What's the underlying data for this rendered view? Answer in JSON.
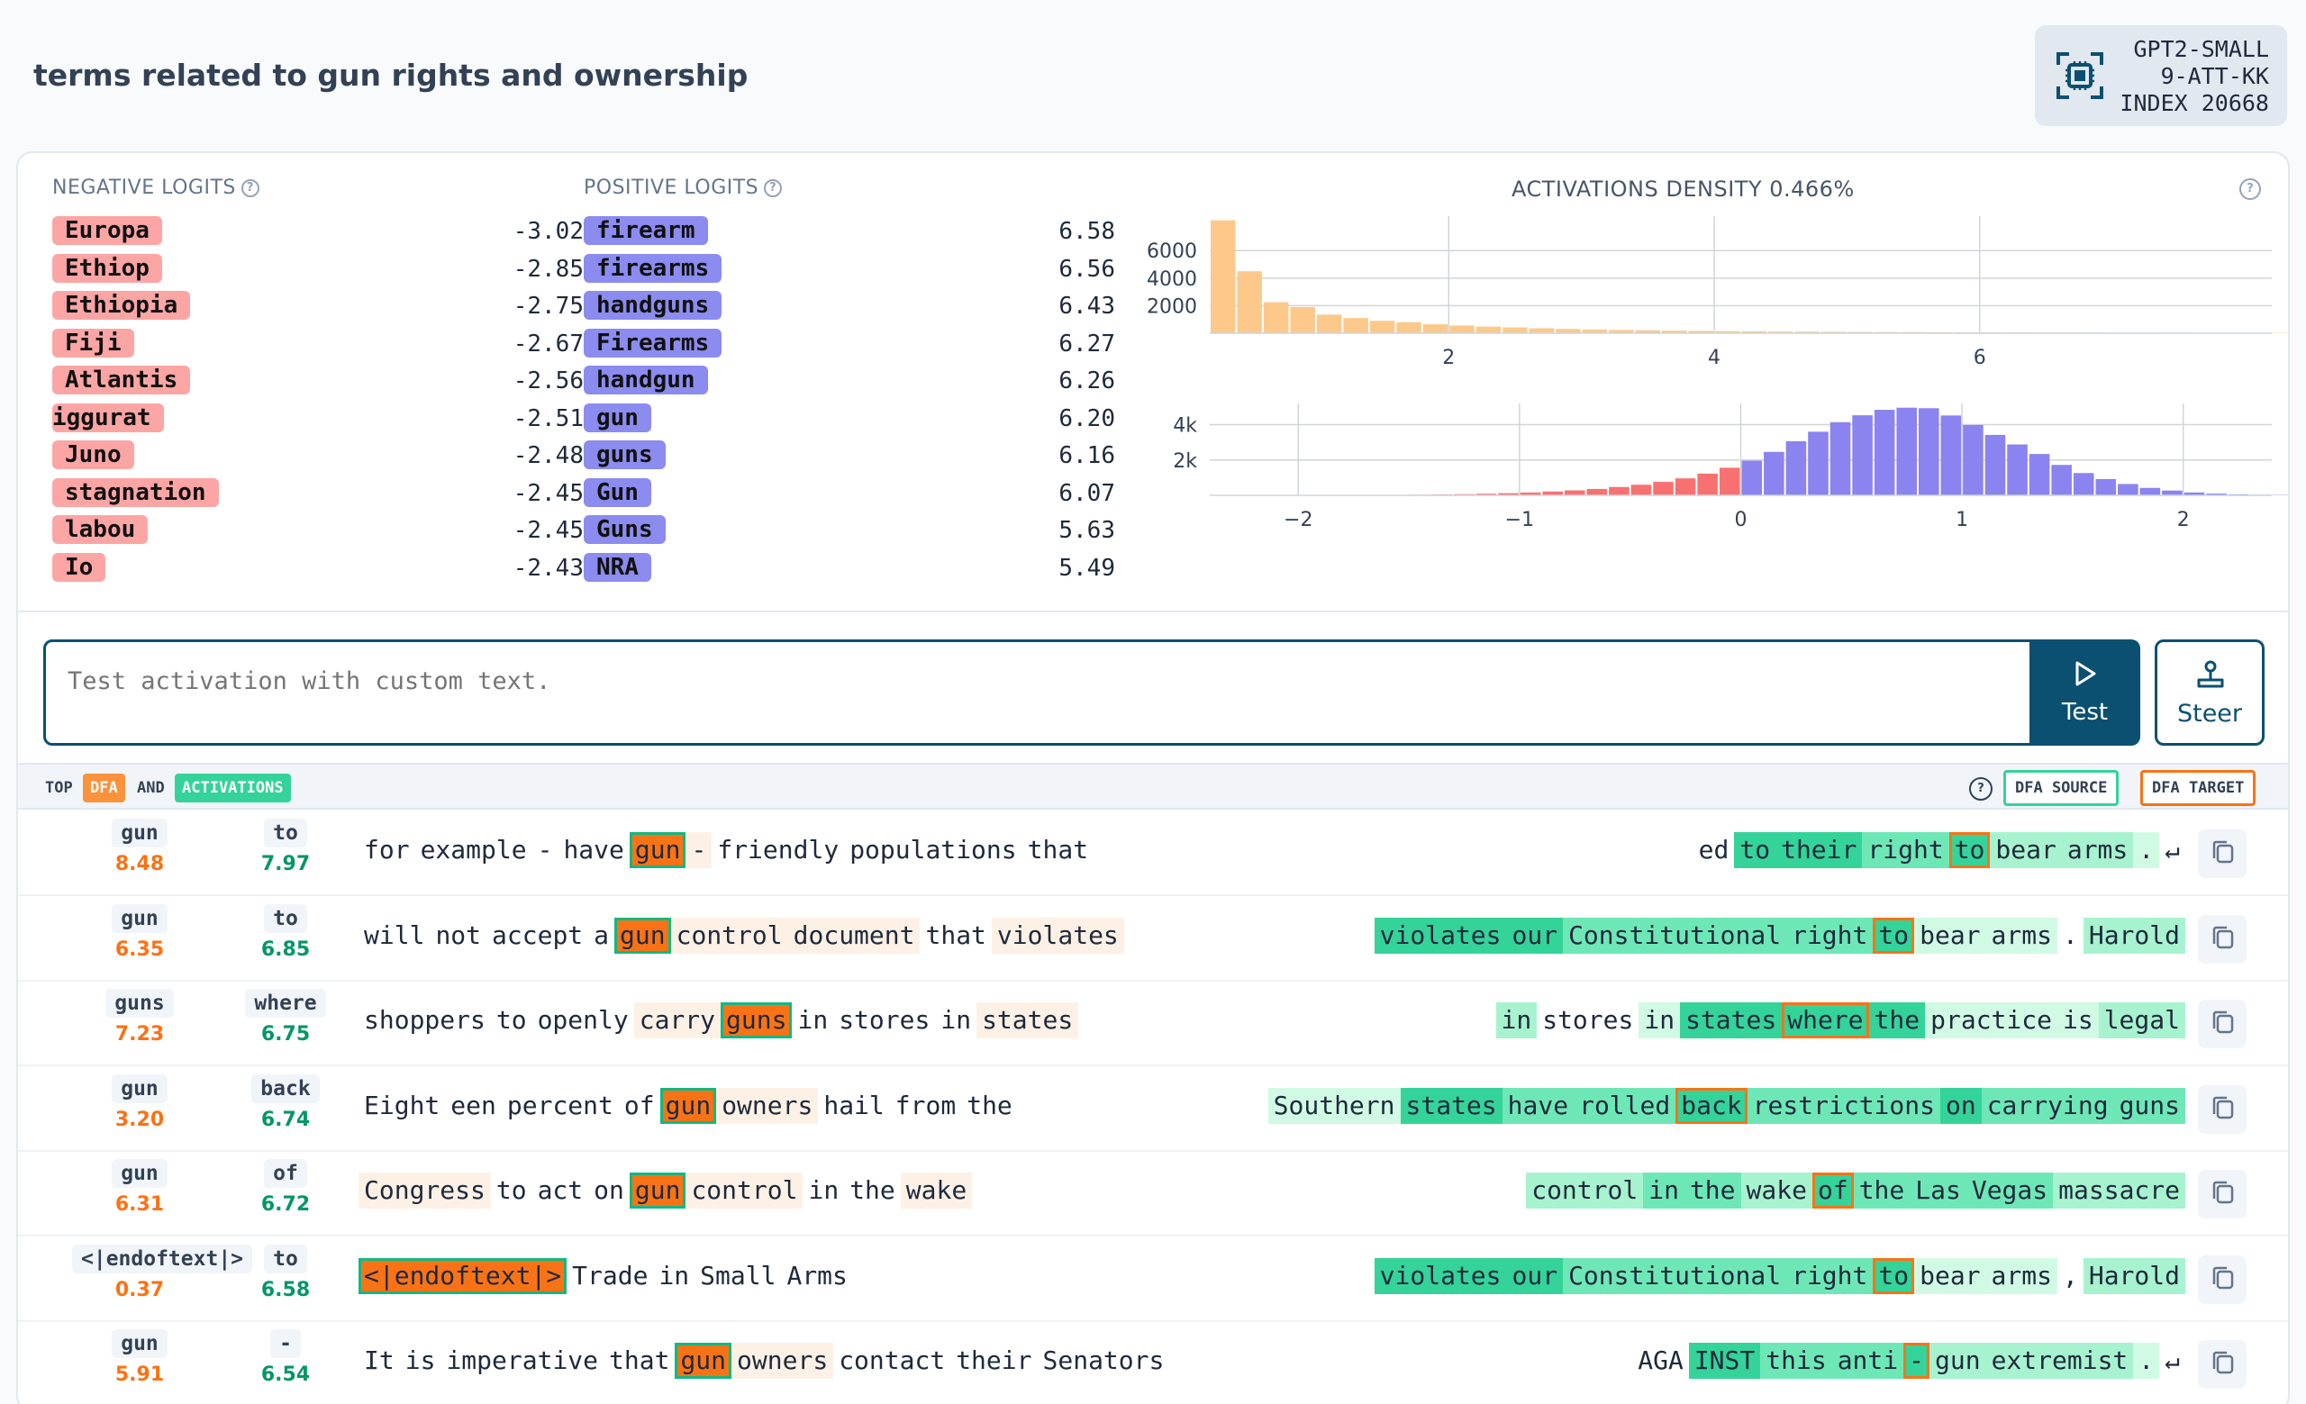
{
  "title": "terms related to gun rights and ownership",
  "badge": {
    "line1": "GPT2-SMALL",
    "line2": "9-ATT-KK",
    "line3": "INDEX 20668",
    "icon": "chip-icon"
  },
  "negative_logits": {
    "header": "NEGATIVE LOGITS",
    "items": [
      {
        "token": "Europa",
        "value": "-3.02"
      },
      {
        "token": "Ethiop",
        "value": "-2.85"
      },
      {
        "token": "Ethiopia",
        "value": "-2.75"
      },
      {
        "token": "Fiji",
        "value": "-2.67"
      },
      {
        "token": "Atlantis",
        "value": "-2.56"
      },
      {
        "token": "iggurat",
        "value": "-2.51"
      },
      {
        "token": "Juno",
        "value": "-2.48"
      },
      {
        "token": "stagnation",
        "value": "-2.45"
      },
      {
        "token": "labou",
        "value": "-2.45"
      },
      {
        "token": "Io",
        "value": "-2.43"
      }
    ]
  },
  "positive_logits": {
    "header": "POSITIVE LOGITS",
    "items": [
      {
        "token": "firearm",
        "value": "6.58"
      },
      {
        "token": "firearms",
        "value": "6.56"
      },
      {
        "token": "handguns",
        "value": "6.43"
      },
      {
        "token": "Firearms",
        "value": "6.27"
      },
      {
        "token": "handgun",
        "value": "6.26"
      },
      {
        "token": "gun",
        "value": "6.20"
      },
      {
        "token": "guns",
        "value": "6.16"
      },
      {
        "token": "Gun",
        "value": "6.07"
      },
      {
        "token": "Guns",
        "value": "5.63"
      },
      {
        "token": "NRA",
        "value": "5.49"
      }
    ]
  },
  "chart_data": [
    {
      "type": "bar",
      "title": "ACTIVATIONS DENSITY 0.466%",
      "color": "#fdc98a",
      "x_ticks": [
        "2",
        "4",
        "6"
      ],
      "y_ticks": [
        "6000",
        "4000",
        "2000"
      ],
      "xlim": [
        0.2,
        8.2
      ],
      "ylim": [
        0,
        8500
      ],
      "bin_width": 0.2,
      "x_start": 0.2,
      "values": [
        8200,
        4500,
        2250,
        1900,
        1350,
        1100,
        900,
        800,
        650,
        560,
        480,
        420,
        360,
        310,
        270,
        240,
        210,
        185,
        165,
        150,
        135,
        120,
        110,
        100,
        92,
        85,
        78,
        72,
        66,
        60,
        55,
        51,
        47,
        43,
        40,
        37,
        34,
        31,
        29,
        27,
        25,
        23,
        21,
        20,
        18,
        17,
        16,
        15,
        14,
        13,
        12,
        11,
        10,
        10,
        9,
        9,
        8,
        8,
        7,
        7,
        6,
        6,
        6,
        6,
        5,
        5,
        5,
        5,
        5,
        5,
        5,
        5,
        5,
        5,
        5,
        5,
        5,
        5,
        5,
        160
      ]
    },
    {
      "type": "bar",
      "title": "",
      "colors": {
        "negative": "#f87171",
        "positive": "#8b83f0"
      },
      "x_ticks": [
        "−2",
        "−1",
        "0",
        "1",
        "2"
      ],
      "y_ticks": [
        "4k",
        "2k"
      ],
      "xlim": [
        -2.4,
        2.4
      ],
      "ylim": [
        0,
        5200
      ],
      "bin_width": 0.1,
      "x_start": -2.4,
      "values": [
        2,
        3,
        4,
        6,
        8,
        10,
        14,
        18,
        25,
        34,
        48,
        66,
        90,
        120,
        160,
        215,
        280,
        360,
        470,
        600,
        760,
        960,
        1230,
        1560,
        1960,
        2460,
        3060,
        3600,
        4140,
        4530,
        4840,
        4960,
        4930,
        4520,
        3980,
        3420,
        2880,
        2340,
        1720,
        1260,
        920,
        640,
        420,
        270,
        160,
        96,
        56,
        32,
        18
      ]
    }
  ],
  "test": {
    "placeholder": "Test activation with custom text.",
    "test_label": "Test",
    "steer_label": "Steer"
  },
  "activations_bar": {
    "top": "TOP",
    "dfa": "DFA",
    "and": "AND",
    "activations": "ACTIVATIONS",
    "dfa_source": "DFA SOURCE",
    "dfa_target": "DFA TARGET"
  },
  "rows": [
    {
      "src_tok": "gun",
      "src_val": "8.48",
      "tgt_tok": "to",
      "tgt_val": "7.97",
      "left": [
        [
          "w0",
          "for"
        ],
        [
          "w0",
          "example"
        ],
        [
          "w0",
          "-"
        ],
        [
          "w0",
          "have"
        ],
        [
          "src",
          "gun"
        ],
        [
          "w1",
          "-"
        ],
        [
          "w0",
          "friendly"
        ],
        [
          "w0",
          "populations"
        ],
        [
          "w0",
          "that"
        ]
      ],
      "right": [
        [
          "w0",
          "ed"
        ],
        [
          "a4",
          "to"
        ],
        [
          "a4",
          "their"
        ],
        [
          "a3",
          "right"
        ],
        [
          "tgt a4",
          "to"
        ],
        [
          "a2",
          "bear"
        ],
        [
          "a2",
          "arms"
        ],
        [
          "a1",
          "."
        ],
        [
          "w0",
          "↵"
        ]
      ]
    },
    {
      "src_tok": "gun",
      "src_val": "6.35",
      "tgt_tok": "to",
      "tgt_val": "6.85",
      "left": [
        [
          "w0",
          "will"
        ],
        [
          "w0",
          "not"
        ],
        [
          "w0",
          "accept"
        ],
        [
          "w0",
          "a"
        ],
        [
          "src",
          "gun"
        ],
        [
          "w1",
          "control"
        ],
        [
          "w1",
          "document"
        ],
        [
          "w0",
          "that"
        ],
        [
          "w1",
          "violates"
        ]
      ],
      "right": [
        [
          "a4",
          "violates"
        ],
        [
          "a4",
          "our"
        ],
        [
          "a3",
          "Constitutional"
        ],
        [
          "a3",
          "right"
        ],
        [
          "tgt a4",
          "to"
        ],
        [
          "a1",
          "bear"
        ],
        [
          "a1",
          "arms"
        ],
        [
          "w0",
          "."
        ],
        [
          "a2",
          "Harold"
        ]
      ]
    },
    {
      "src_tok": "guns",
      "src_val": "7.23",
      "tgt_tok": "where",
      "tgt_val": "6.75",
      "left": [
        [
          "w0",
          "shoppers"
        ],
        [
          "w0",
          "to"
        ],
        [
          "w0",
          "openly"
        ],
        [
          "w1",
          "carry"
        ],
        [
          "src",
          "guns"
        ],
        [
          "w0",
          "in"
        ],
        [
          "w0",
          "stores"
        ],
        [
          "w0",
          "in"
        ],
        [
          "w1",
          "states"
        ]
      ],
      "right": [
        [
          "a2",
          "in"
        ],
        [
          "w0",
          "stores"
        ],
        [
          "a1",
          "in"
        ],
        [
          "a4",
          "states"
        ],
        [
          "tgt a4",
          "where"
        ],
        [
          "a4",
          "the"
        ],
        [
          "a1",
          "practice"
        ],
        [
          "a1",
          "is"
        ],
        [
          "a2",
          "legal"
        ]
      ]
    },
    {
      "src_tok": "gun",
      "src_val": "3.20",
      "tgt_tok": "back",
      "tgt_val": "6.74",
      "left": [
        [
          "w0",
          "Eight"
        ],
        [
          "w0",
          "een"
        ],
        [
          "w0",
          "percent"
        ],
        [
          "w0",
          "of"
        ],
        [
          "src",
          "gun"
        ],
        [
          "w1",
          "owners"
        ],
        [
          "w0",
          "hail"
        ],
        [
          "w0",
          "from"
        ],
        [
          "w0",
          "the"
        ]
      ],
      "right": [
        [
          "a1",
          "Southern"
        ],
        [
          "a4",
          "states"
        ],
        [
          "a3",
          "have"
        ],
        [
          "a3",
          "rolled"
        ],
        [
          "tgt a4",
          "back"
        ],
        [
          "a3",
          "restrictions"
        ],
        [
          "a4",
          "on"
        ],
        [
          "a3",
          "carrying"
        ],
        [
          "a3",
          "guns"
        ]
      ]
    },
    {
      "src_tok": "gun",
      "src_val": "6.31",
      "tgt_tok": "of",
      "tgt_val": "6.72",
      "left": [
        [
          "w1",
          "Congress"
        ],
        [
          "w0",
          "to"
        ],
        [
          "w0",
          "act"
        ],
        [
          "w0",
          "on"
        ],
        [
          "src",
          "gun"
        ],
        [
          "w1",
          "control"
        ],
        [
          "w0",
          "in"
        ],
        [
          "w0",
          "the"
        ],
        [
          "w1",
          "wake"
        ]
      ],
      "right": [
        [
          "a2",
          "control"
        ],
        [
          "a3",
          "in"
        ],
        [
          "a3",
          "the"
        ],
        [
          "a2",
          "wake"
        ],
        [
          "tgt a4",
          "of"
        ],
        [
          "a3",
          "the"
        ],
        [
          "a3",
          "Las"
        ],
        [
          "a3",
          "Vegas"
        ],
        [
          "a2",
          "massacre"
        ]
      ]
    },
    {
      "src_tok": "<|endoftext|>",
      "src_val": "0.37",
      "tgt_tok": "to",
      "tgt_val": "6.58",
      "left": [
        [
          "src",
          "<|endoftext|>"
        ],
        [
          "w0",
          "Trade"
        ],
        [
          "w0",
          "in"
        ],
        [
          "w0",
          "Small"
        ],
        [
          "w0",
          "Arms"
        ]
      ],
      "right": [
        [
          "a4",
          "violates"
        ],
        [
          "a4",
          "our"
        ],
        [
          "a3",
          "Constitutional"
        ],
        [
          "a3",
          "right"
        ],
        [
          "tgt a4",
          "to"
        ],
        [
          "a1",
          "bear"
        ],
        [
          "a1",
          "arms"
        ],
        [
          "w0",
          ","
        ],
        [
          "a2",
          "Harold"
        ]
      ]
    },
    {
      "src_tok": "gun",
      "src_val": "5.91",
      "tgt_tok": "-",
      "tgt_val": "6.54",
      "left": [
        [
          "w0",
          "It"
        ],
        [
          "w0",
          "is"
        ],
        [
          "w0",
          "imperative"
        ],
        [
          "w0",
          "that"
        ],
        [
          "src",
          "gun"
        ],
        [
          "w1",
          "owners"
        ],
        [
          "w0",
          "contact"
        ],
        [
          "w0",
          "their"
        ],
        [
          "w0",
          "Senators"
        ]
      ],
      "right": [
        [
          "w0",
          "AGA"
        ],
        [
          "a4",
          "INST"
        ],
        [
          "a3",
          "this"
        ],
        [
          "a3",
          "anti"
        ],
        [
          "tgt a4",
          "-"
        ],
        [
          "a2",
          "gun"
        ],
        [
          "a2",
          "extremist"
        ],
        [
          "a1",
          "."
        ],
        [
          "w0",
          "↵"
        ]
      ]
    }
  ]
}
